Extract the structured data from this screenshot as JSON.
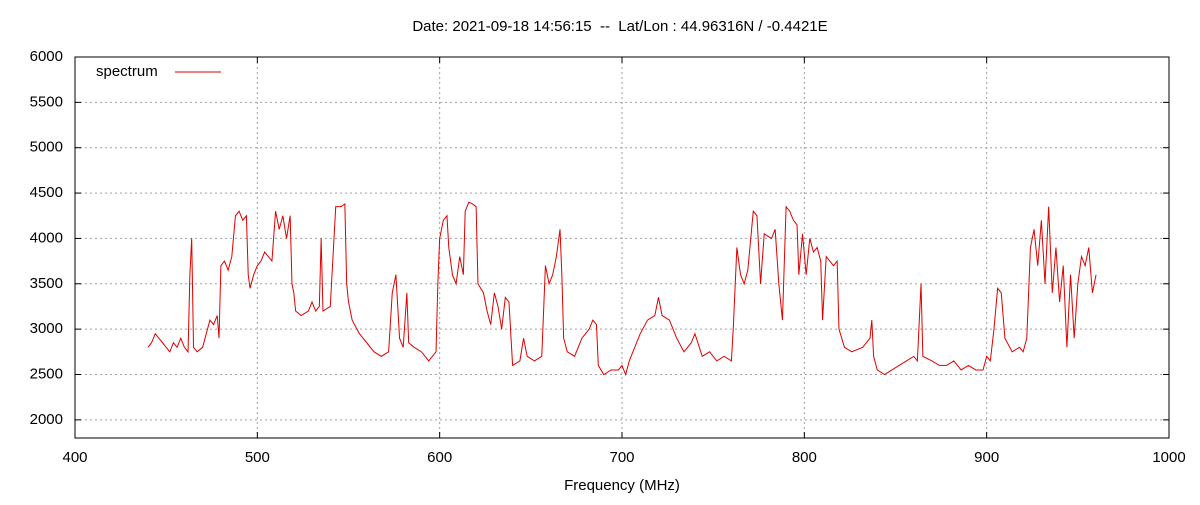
{
  "chart_data": {
    "type": "line",
    "title": "Date: 2021-09-18 14:56:15  --  Lat/Lon : 44.96316N / -0.4421E",
    "x_label": "Frequency (MHz)",
    "xlim": [
      400,
      1000
    ],
    "xticks": [
      400,
      500,
      600,
      700,
      800,
      900,
      1000
    ],
    "ylim": [
      1800,
      6000
    ],
    "yticks": [
      2000,
      2500,
      3000,
      3500,
      4000,
      4500,
      5000,
      5500,
      6000
    ],
    "grid": true,
    "legend": "upper-left",
    "x": [
      440,
      442,
      444,
      446,
      448,
      450,
      452,
      454,
      456,
      458,
      460,
      462,
      463,
      464,
      465,
      467,
      470,
      472,
      474,
      476,
      478,
      479,
      480,
      482,
      484,
      486,
      488,
      490,
      492,
      494,
      495,
      496,
      498,
      500,
      502,
      504,
      506,
      508,
      510,
      512,
      514,
      516,
      518,
      519,
      520,
      521,
      524,
      528,
      530,
      532,
      534,
      535,
      536,
      540,
      543,
      546,
      548,
      549,
      550,
      552,
      556,
      560,
      564,
      568,
      572,
      574,
      576,
      578,
      580,
      582,
      583,
      586,
      590,
      594,
      598,
      599,
      600,
      602,
      604,
      605,
      607,
      609,
      611,
      613,
      614,
      616,
      618,
      620,
      621,
      624,
      626,
      628,
      630,
      632,
      634,
      636,
      638,
      640,
      644,
      646,
      648,
      652,
      656,
      658,
      660,
      662,
      664,
      666,
      667,
      668,
      670,
      674,
      678,
      680,
      682,
      684,
      686,
      687,
      690,
      694,
      698,
      700,
      702,
      704,
      706,
      710,
      714,
      718,
      720,
      722,
      726,
      730,
      734,
      738,
      740,
      744,
      748,
      752,
      756,
      760,
      761,
      763,
      765,
      767,
      769,
      772,
      774,
      776,
      778,
      782,
      784,
      786,
      788,
      790,
      792,
      794,
      796,
      797,
      799,
      801,
      803,
      805,
      807,
      809,
      810,
      812,
      816,
      818,
      819,
      822,
      826,
      832,
      836,
      837,
      838,
      840,
      844,
      848,
      852,
      856,
      860,
      862,
      864,
      865,
      870,
      874,
      878,
      882,
      886,
      890,
      894,
      898,
      900,
      902,
      904,
      906,
      908,
      910,
      914,
      918,
      920,
      922,
      924,
      926,
      928,
      930,
      932,
      934,
      936,
      938,
      940,
      942,
      944,
      946,
      948,
      950,
      952,
      954,
      956,
      958,
      960
    ],
    "series": [
      {
        "name": "spectrum",
        "color": "#e00000",
        "values": [
          2800,
          2850,
          2950,
          2900,
          2850,
          2800,
          2750,
          2850,
          2800,
          2900,
          2800,
          2750,
          3600,
          4000,
          2800,
          2750,
          2800,
          2950,
          3100,
          3050,
          3150,
          2900,
          3700,
          3750,
          3650,
          3800,
          4250,
          4300,
          4200,
          4250,
          3600,
          3450,
          3600,
          3700,
          3750,
          3850,
          3800,
          3750,
          4300,
          4100,
          4250,
          4000,
          4250,
          3500,
          3400,
          3200,
          3150,
          3200,
          3300,
          3200,
          3250,
          4000,
          3200,
          3250,
          4350,
          4350,
          4380,
          3500,
          3300,
          3100,
          2950,
          2850,
          2750,
          2700,
          2750,
          3400,
          3600,
          2900,
          2800,
          3400,
          2850,
          2800,
          2750,
          2650,
          2750,
          3500,
          4000,
          4200,
          4250,
          3900,
          3600,
          3500,
          3800,
          3600,
          4300,
          4400,
          4380,
          4350,
          3500,
          3400,
          3200,
          3050,
          3400,
          3250,
          3000,
          3350,
          3300,
          2600,
          2650,
          2900,
          2700,
          2650,
          2700,
          3700,
          3500,
          3600,
          3800,
          4100,
          3600,
          2900,
          2750,
          2700,
          2900,
          2950,
          3000,
          3100,
          3050,
          2600,
          2500,
          2550,
          2550,
          2600,
          2500,
          2650,
          2750,
          2950,
          3100,
          3150,
          3350,
          3150,
          3100,
          2900,
          2750,
          2850,
          2950,
          2700,
          2750,
          2650,
          2700,
          2650,
          3000,
          3900,
          3600,
          3500,
          3650,
          4300,
          4250,
          3500,
          4050,
          4000,
          4100,
          3500,
          3100,
          4350,
          4300,
          4200,
          4150,
          3600,
          4050,
          3600,
          4000,
          3850,
          3900,
          3750,
          3100,
          3800,
          3700,
          3750,
          3000,
          2800,
          2750,
          2800,
          2900,
          3100,
          2700,
          2550,
          2500,
          2550,
          2600,
          2650,
          2700,
          2650,
          3500,
          2700,
          2650,
          2600,
          2600,
          2650,
          2550,
          2600,
          2550,
          2550,
          2700,
          2650,
          3000,
          3450,
          3400,
          2900,
          2750,
          2800,
          2750,
          2900,
          3900,
          4100,
          3700,
          4200,
          3500,
          4350,
          3400,
          3900,
          3300,
          3700,
          2800,
          3600,
          2900,
          3500,
          3800,
          3700,
          3900,
          3400,
          3600
        ]
      }
    ]
  }
}
